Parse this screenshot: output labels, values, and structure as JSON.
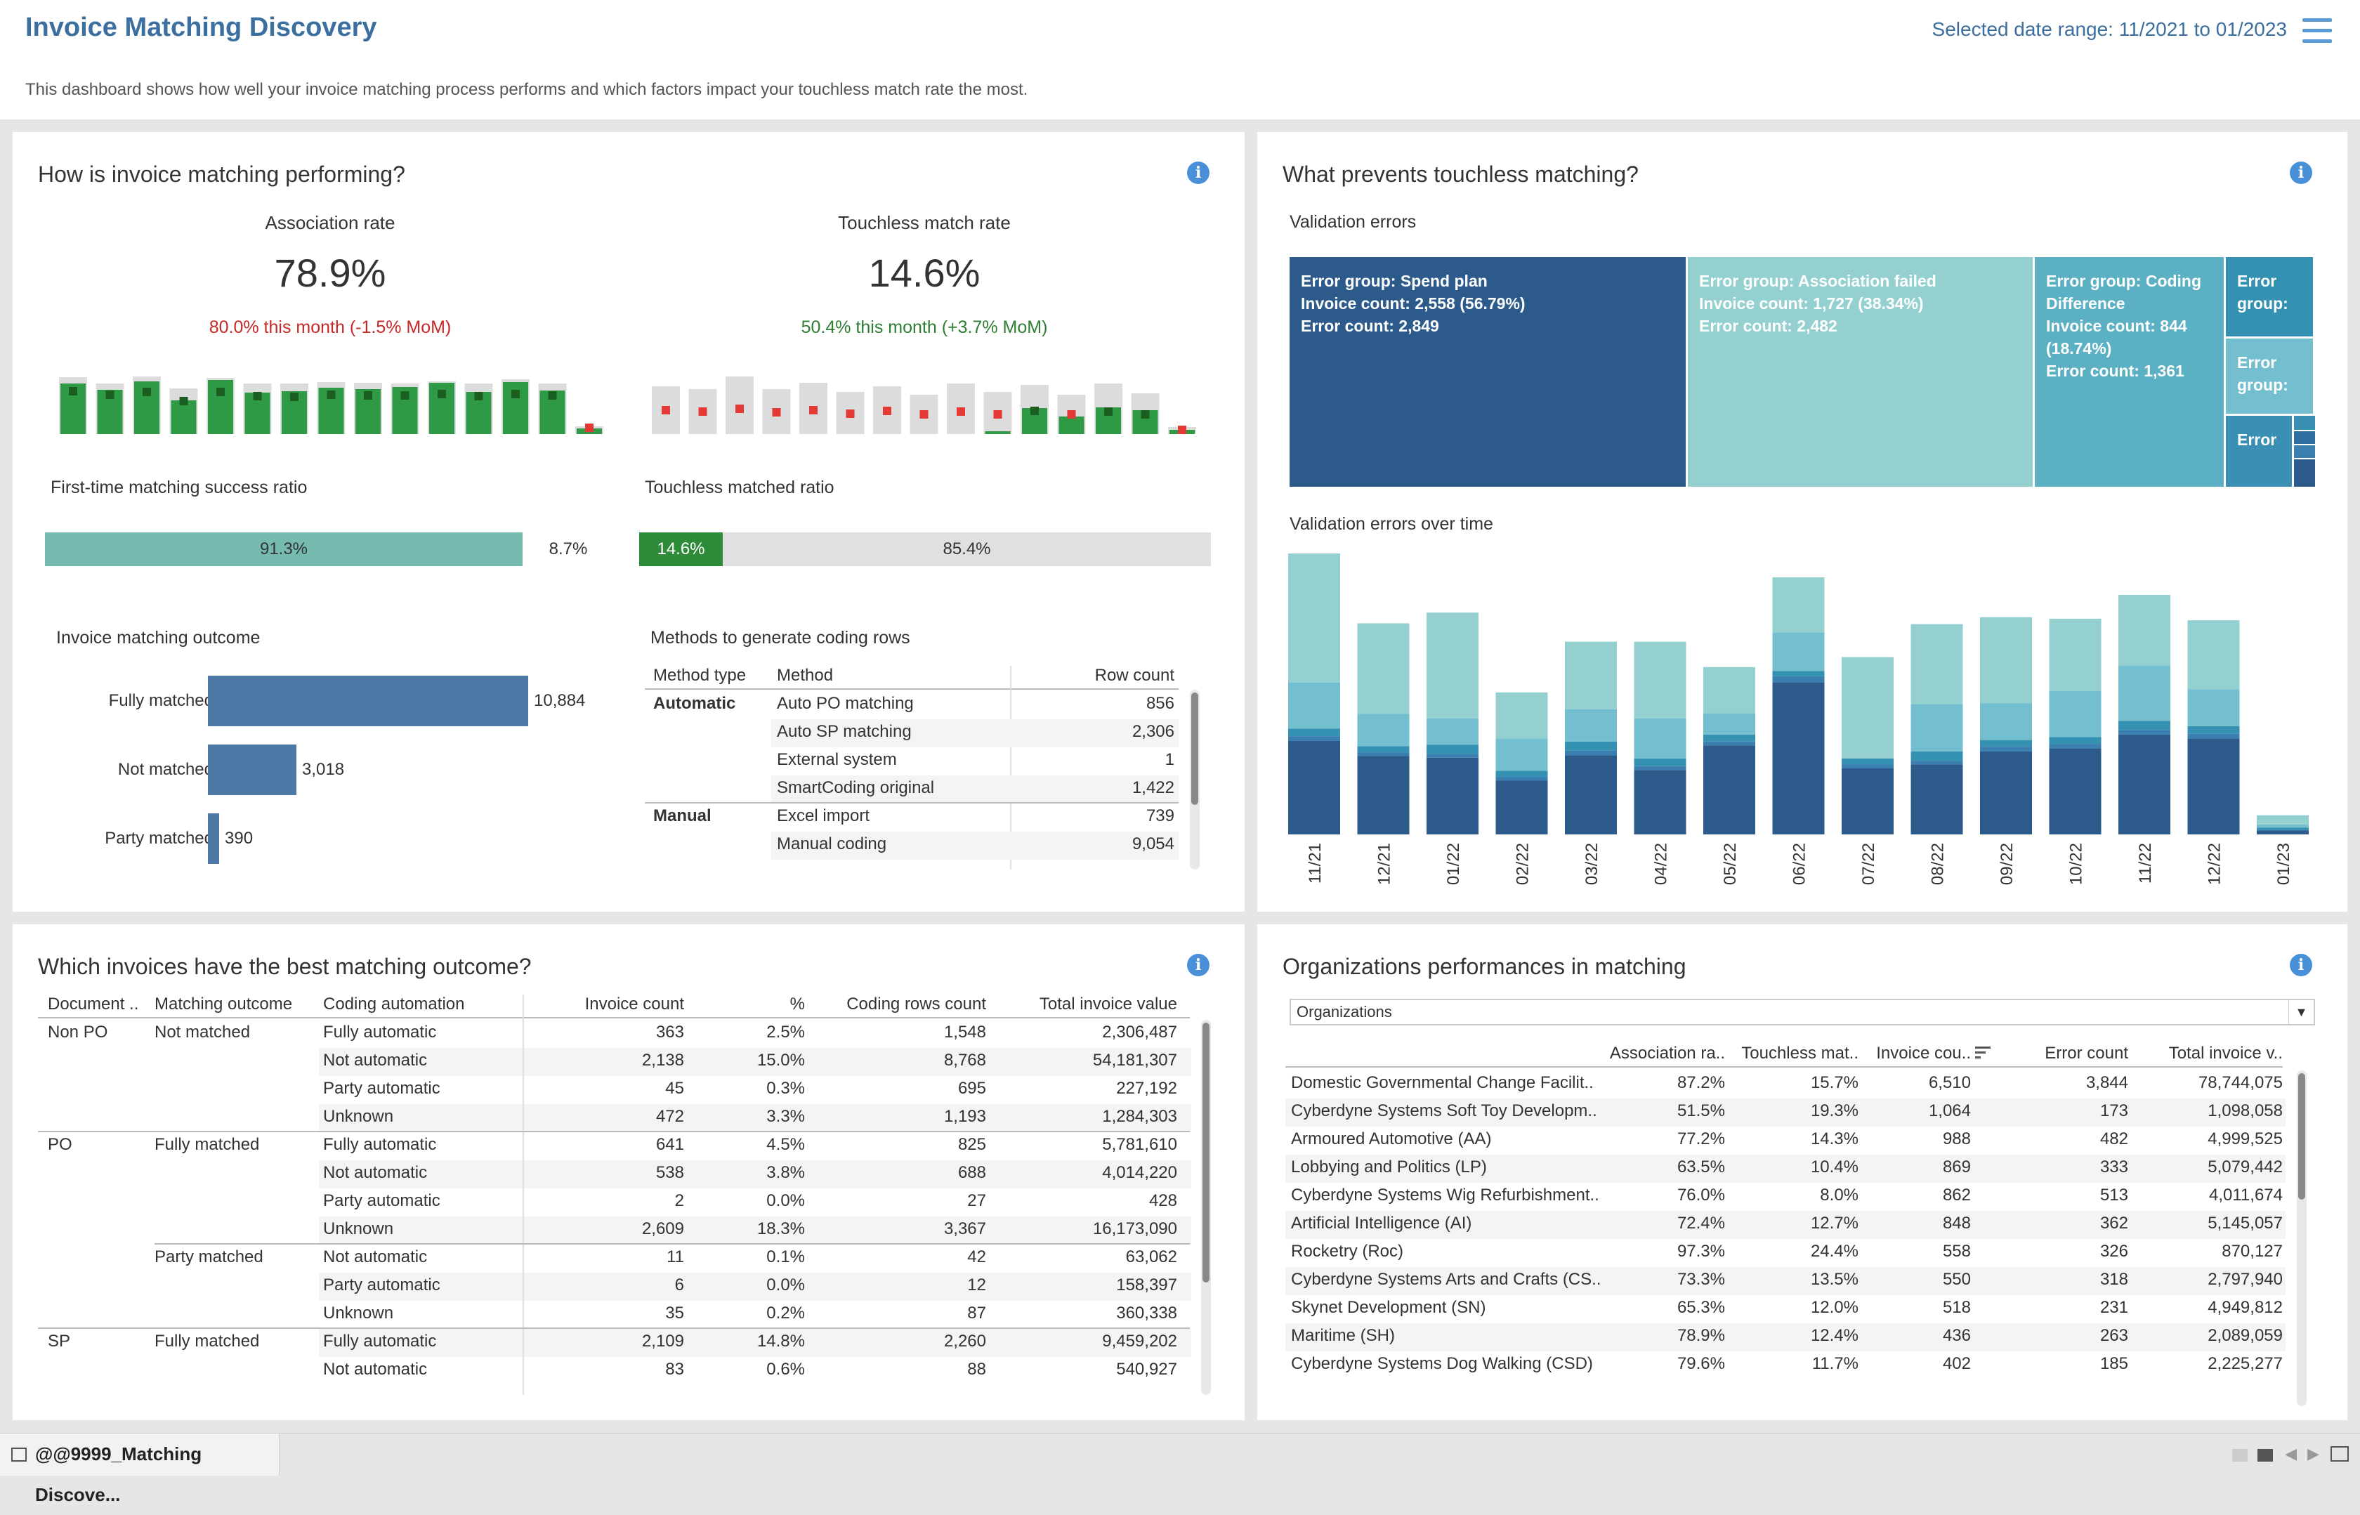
{
  "header": {
    "title": "Invoice Matching Discovery",
    "subtitle": "This dashboard shows how well your invoice matching process performs and which factors impact your touchless match rate the most.",
    "date_range": "Selected date range: 11/2021 to 01/2023"
  },
  "panel1": {
    "title": "How is invoice matching performing?",
    "kpi1": {
      "label": "Association rate",
      "value": "78.9%",
      "mom": "80.0% this month (-1.5% MoM)"
    },
    "kpi2": {
      "label": "Touchless match rate",
      "value": "14.6%",
      "mom": "50.4% this month (+3.7% MoM)"
    },
    "spark1": {
      "bg": [
        0.81,
        0.72,
        0.82,
        0.65,
        0.8,
        0.72,
        0.72,
        0.74,
        0.73,
        0.72,
        0.75,
        0.72,
        0.78,
        0.72,
        0.11
      ],
      "fg": [
        0.72,
        0.63,
        0.75,
        0.48,
        0.77,
        0.59,
        0.61,
        0.66,
        0.64,
        0.67,
        0.73,
        0.6,
        0.74,
        0.62,
        0.08
      ],
      "marker": [
        0.61,
        0.56,
        0.6,
        0.47,
        0.6,
        0.54,
        0.53,
        0.56,
        0.55,
        0.55,
        0.57,
        0.54,
        0.57,
        0.55,
        0.09
      ]
    },
    "spark2": {
      "bg": [
        0.68,
        0.64,
        0.82,
        0.64,
        0.73,
        0.6,
        0.68,
        0.56,
        0.72,
        0.6,
        0.7,
        0.56,
        0.72,
        0.58,
        0.1
      ],
      "fg": [
        0,
        0,
        0,
        0,
        0,
        0,
        0,
        0,
        0,
        0.04,
        0.37,
        0.25,
        0.38,
        0.34,
        0.06
      ],
      "marker": [
        0.34,
        0.32,
        0.36,
        0.31,
        0.34,
        0.29,
        0.33,
        0.28,
        0.32,
        0.28,
        0.33,
        0.28,
        0.32,
        0.28,
        0.06
      ]
    },
    "first_time": {
      "label": "First-time matching success ratio",
      "a": "91.3%",
      "b": "8.7%",
      "a_frac": 0.913
    },
    "touchless": {
      "label": "Touchless matched ratio",
      "a": "14.6%",
      "b": "85.4%",
      "a_frac": 0.146
    },
    "outcome": {
      "label": "Invoice matching outcome",
      "rows": [
        {
          "name": "Fully matched",
          "value": 10884,
          "text": "10,884"
        },
        {
          "name": "Not matched",
          "value": 3018,
          "text": "3,018"
        },
        {
          "name": "Party matched",
          "value": 390,
          "text": "390"
        }
      ]
    },
    "methods": {
      "label": "Methods to generate coding rows",
      "headers": [
        "Method type",
        "Method",
        "Row count"
      ],
      "rows": [
        {
          "type": "Automatic",
          "method": "Auto PO matching",
          "count": "856"
        },
        {
          "type": "",
          "method": "Auto SP matching",
          "count": "2,306"
        },
        {
          "type": "",
          "method": "External system",
          "count": "1"
        },
        {
          "type": "",
          "method": "SmartCoding original",
          "count": "1,422"
        },
        {
          "type": "Manual",
          "method": "Excel import",
          "count": "739"
        },
        {
          "type": "",
          "method": "Manual coding",
          "count": "9,054"
        }
      ]
    }
  },
  "panel2": {
    "title": "What prevents touchless matching?",
    "treemap_label": "Validation errors",
    "tiles": [
      {
        "text": "Error group: Spend plan\nInvoice count: 2,558 (56.79%)\nError count: 2,849",
        "color": "#2c5a8a"
      },
      {
        "text": "Error group: Association failed\nInvoice count: 1,727 (38.34%)\nError count: 2,482",
        "color": "#95d0d1"
      },
      {
        "text": "Error group: Coding Difference\nInvoice count: 844 (18.74%)\nError count: 1,361",
        "color": "#5bb0c3"
      },
      {
        "text": "Error group:",
        "color": "#3591b1"
      },
      {
        "text": "Error group:",
        "color": "#74bfcf"
      },
      {
        "text": "Error",
        "color": "#3a8fb5"
      }
    ],
    "chart_label": "Validation errors over time"
  },
  "chart_data": {
    "type": "bar",
    "stacked": true,
    "categories": [
      "11/21",
      "12/21",
      "01/22",
      "02/22",
      "03/22",
      "04/22",
      "05/22",
      "06/22",
      "07/22",
      "08/22",
      "09/22",
      "10/22",
      "11/22",
      "12/22",
      "01/23"
    ],
    "series": [
      {
        "color": "#2c5a8a",
        "values": [
          122,
          102,
          100,
          70,
          103,
          84,
          116,
          198,
          86,
          91,
          108,
          112,
          130,
          125,
          5
        ]
      },
      {
        "color": "#3a7fb0",
        "values": [
          6,
          5,
          5,
          5,
          6,
          5,
          5,
          8,
          5,
          5,
          6,
          6,
          6,
          6,
          1
        ]
      },
      {
        "color": "#3591b1",
        "values": [
          10,
          8,
          12,
          8,
          12,
          10,
          9,
          7,
          8,
          12,
          9,
          9,
          12,
          10,
          3
        ]
      },
      {
        "color": "#74bfcf",
        "values": [
          60,
          42,
          34,
          42,
          42,
          52,
          28,
          50,
          0,
          62,
          48,
          60,
          72,
          48,
          4
        ]
      },
      {
        "color": "#95d0d1",
        "values": [
          168,
          118,
          138,
          60,
          88,
          100,
          60,
          72,
          132,
          104,
          112,
          94,
          92,
          90,
          12
        ]
      }
    ]
  },
  "panel3": {
    "title": "Which invoices have the best matching outcome?",
    "headers": [
      "Document ..",
      "Matching outcome",
      "Coding automation",
      "Invoice count",
      "%",
      "Coding rows count",
      "Total invoice value"
    ],
    "rows": [
      {
        "doc": "Non PO",
        "outcome": "Not matched",
        "auto": "Fully automatic",
        "count": "363",
        "pct": "2.5%",
        "rows": "1,548",
        "value": "2,306,487"
      },
      {
        "doc": "",
        "outcome": "",
        "auto": "Not automatic",
        "count": "2,138",
        "pct": "15.0%",
        "rows": "8,768",
        "value": "54,181,307"
      },
      {
        "doc": "",
        "outcome": "",
        "auto": "Party automatic",
        "count": "45",
        "pct": "0.3%",
        "rows": "695",
        "value": "227,192"
      },
      {
        "doc": "",
        "outcome": "",
        "auto": "Unknown",
        "count": "472",
        "pct": "3.3%",
        "rows": "1,193",
        "value": "1,284,303"
      },
      {
        "doc": "PO",
        "outcome": "Fully matched",
        "auto": "Fully automatic",
        "count": "641",
        "pct": "4.5%",
        "rows": "825",
        "value": "5,781,610"
      },
      {
        "doc": "",
        "outcome": "",
        "auto": "Not automatic",
        "count": "538",
        "pct": "3.8%",
        "rows": "688",
        "value": "4,014,220"
      },
      {
        "doc": "",
        "outcome": "",
        "auto": "Party automatic",
        "count": "2",
        "pct": "0.0%",
        "rows": "27",
        "value": "428"
      },
      {
        "doc": "",
        "outcome": "",
        "auto": "Unknown",
        "count": "2,609",
        "pct": "18.3%",
        "rows": "3,367",
        "value": "16,173,090"
      },
      {
        "doc": "",
        "outcome": "Party matched",
        "auto": "Not automatic",
        "count": "11",
        "pct": "0.1%",
        "rows": "42",
        "value": "63,062"
      },
      {
        "doc": "",
        "outcome": "",
        "auto": "Party automatic",
        "count": "6",
        "pct": "0.0%",
        "rows": "12",
        "value": "158,397"
      },
      {
        "doc": "",
        "outcome": "",
        "auto": "Unknown",
        "count": "35",
        "pct": "0.2%",
        "rows": "87",
        "value": "360,338"
      },
      {
        "doc": "SP",
        "outcome": "Fully matched",
        "auto": "Fully automatic",
        "count": "2,109",
        "pct": "14.8%",
        "rows": "2,260",
        "value": "9,459,202"
      },
      {
        "doc": "",
        "outcome": "",
        "auto": "Not automatic",
        "count": "83",
        "pct": "0.6%",
        "rows": "88",
        "value": "540,927"
      }
    ]
  },
  "panel4": {
    "title": "Organizations performances in matching",
    "filter": "Organizations",
    "headers": [
      "Association ra..",
      "Touchless mat..",
      "Invoice cou..",
      "Error count",
      "Total invoice v.."
    ],
    "rows": [
      {
        "name": "Domestic Governmental Change Facilit..",
        "assoc": "87.2%",
        "touch": "15.7%",
        "inv": "6,510",
        "err": "3,844",
        "total": "78,744,075"
      },
      {
        "name": "Cyberdyne Systems Soft Toy Developm..",
        "assoc": "51.5%",
        "touch": "19.3%",
        "inv": "1,064",
        "err": "173",
        "total": "1,098,058"
      },
      {
        "name": "Armoured Automotive (AA)",
        "assoc": "77.2%",
        "touch": "14.3%",
        "inv": "988",
        "err": "482",
        "total": "4,999,525"
      },
      {
        "name": "Lobbying and Politics (LP)",
        "assoc": "63.5%",
        "touch": "10.4%",
        "inv": "869",
        "err": "333",
        "total": "5,079,442"
      },
      {
        "name": "Cyberdyne Systems Wig Refurbishment..",
        "assoc": "76.0%",
        "touch": "8.0%",
        "inv": "862",
        "err": "513",
        "total": "4,011,674"
      },
      {
        "name": "Artificial Intelligence (AI)",
        "assoc": "72.4%",
        "touch": "12.7%",
        "inv": "848",
        "err": "362",
        "total": "5,145,057"
      },
      {
        "name": "Rocketry (Roc)",
        "assoc": "97.3%",
        "touch": "24.4%",
        "inv": "558",
        "err": "326",
        "total": "870,127"
      },
      {
        "name": "Cyberdyne Systems Arts and Crafts (CS..",
        "assoc": "73.3%",
        "touch": "13.5%",
        "inv": "550",
        "err": "318",
        "total": "2,797,940"
      },
      {
        "name": "Skynet Development (SN)",
        "assoc": "65.3%",
        "touch": "12.0%",
        "inv": "518",
        "err": "231",
        "total": "4,949,812"
      },
      {
        "name": "Maritime (SH)",
        "assoc": "78.9%",
        "touch": "12.4%",
        "inv": "436",
        "err": "263",
        "total": "2,089,059"
      },
      {
        "name": "Cyberdyne Systems Dog Walking (CSD)",
        "assoc": "79.6%",
        "touch": "11.7%",
        "inv": "402",
        "err": "185",
        "total": "2,225,277"
      }
    ]
  },
  "tabbar": {
    "tab": "@@9999_Matching Discove..."
  }
}
